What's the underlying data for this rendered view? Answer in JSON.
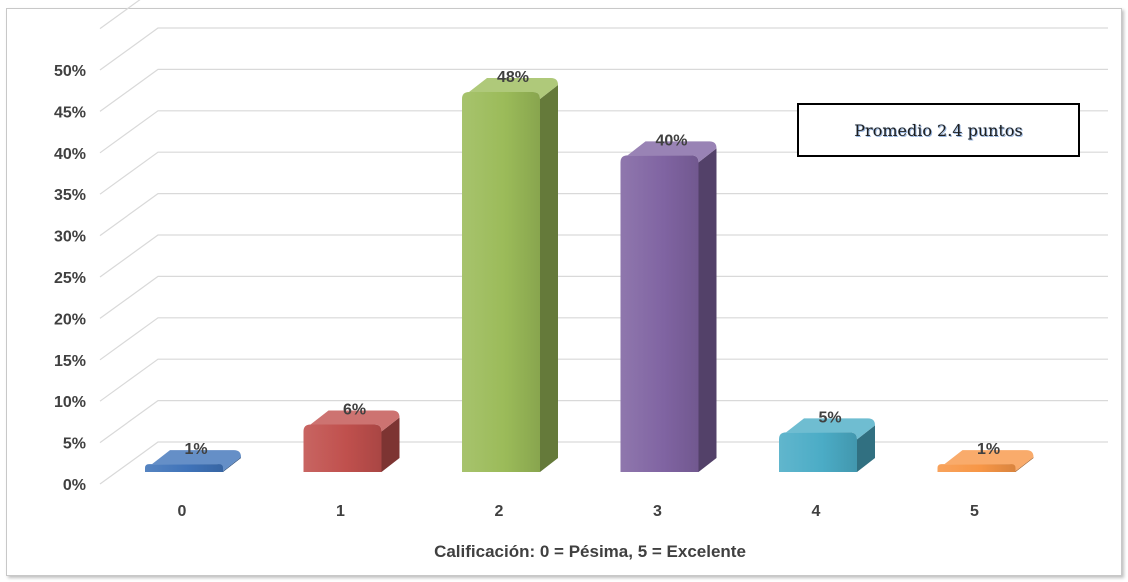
{
  "chart_data": {
    "type": "bar",
    "categories": [
      "0",
      "1",
      "2",
      "3",
      "4",
      "5"
    ],
    "values": [
      1,
      6,
      48,
      40,
      5,
      1
    ],
    "data_labels": [
      "1%",
      "6%",
      "48%",
      "40%",
      "5%",
      "1%"
    ],
    "colors": [
      "#3f73b9",
      "#c0504d",
      "#9bbb59",
      "#8064a2",
      "#4bacc6",
      "#f79646"
    ],
    "xlabel": "Calificación: 0 = Pésima, 5 = Excelente",
    "ylabel": "",
    "ylim": [
      0,
      50
    ],
    "y_ticks": [
      "0%",
      "5%",
      "10%",
      "15%",
      "20%",
      "25%",
      "30%",
      "35%",
      "40%",
      "45%",
      "50%"
    ],
    "grid": true,
    "legend": "none",
    "annotation": "Promedio 2.4 puntos",
    "style": "3d-column"
  }
}
